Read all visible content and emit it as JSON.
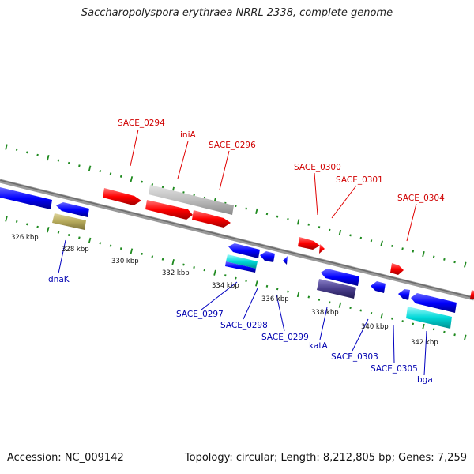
{
  "title": "Saccharopolyspora erythraea NRRL 2338, complete genome",
  "footer": {
    "accession": "Accession: NC_009142",
    "summary": "Topology: circular; Length: 8,212,805 bp; Genes: 7,259"
  },
  "scale_labels": [
    "326 kbp",
    "328 kbp",
    "330 kbp",
    "332 kbp",
    "334 kbp",
    "336 kbp",
    "338 kbp",
    "340 kbp",
    "342 kbp"
  ],
  "forward_labels": [
    "SACE_0294",
    "iniA",
    "SACE_0296",
    "SACE_0300",
    "SACE_0301",
    "SACE_0304"
  ],
  "reverse_labels": [
    "dnaK",
    "SACE_0297",
    "SACE_0298",
    "SACE_0299",
    "katA",
    "SACE_0303",
    "SACE_0305",
    "bga"
  ],
  "colors": {
    "forward": "#ff0000",
    "reverse": "#0000ff",
    "pseudo_gray": "#bdbdbd",
    "olive": "#b5a95a",
    "cyan": "#00d8d8",
    "purple": "#4a3f8c",
    "backbone": "#7a7a7a",
    "tick": "#1f8a1f",
    "label_forward": "#d00000",
    "label_reverse": "#0000b0"
  }
}
